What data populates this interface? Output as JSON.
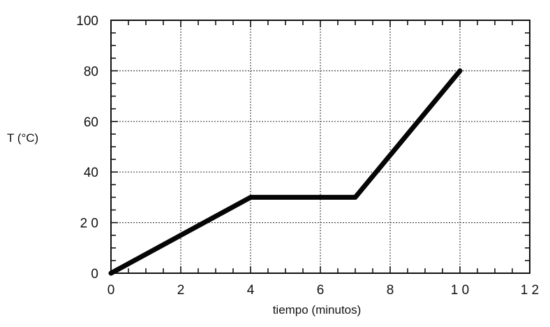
{
  "chart_data": {
    "type": "line",
    "title": "",
    "xlabel": "tiempo (minutos)",
    "ylabel": "T (°C)",
    "xlim": [
      0,
      12
    ],
    "ylim": [
      0,
      100
    ],
    "grid": true,
    "x_ticks": [
      0,
      2,
      4,
      6,
      8,
      10,
      12
    ],
    "x_tick_labels": [
      "0",
      "2",
      "4",
      "6",
      "8",
      "1 0",
      "1 2"
    ],
    "y_ticks": [
      0,
      20,
      40,
      60,
      80,
      100
    ],
    "y_tick_labels": [
      "0",
      "2 0",
      "40",
      "60",
      "80",
      "100"
    ],
    "series": [
      {
        "x": [
          0,
          4,
          7,
          10
        ],
        "y": [
          0,
          30,
          30,
          80
        ],
        "color": "#050505"
      }
    ]
  }
}
